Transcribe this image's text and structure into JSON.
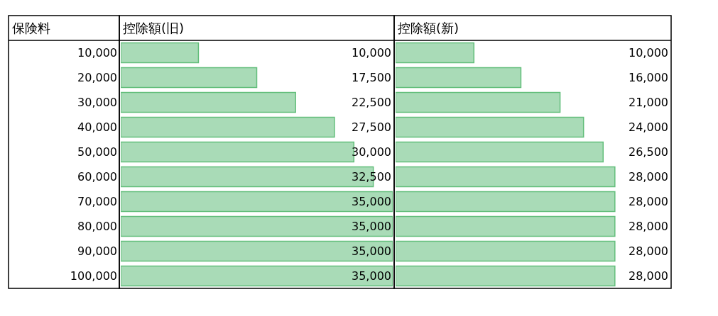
{
  "chart_data": [
    {
      "type": "bar",
      "orientation": "horizontal",
      "title": "控除額(旧)",
      "ylabel": "保険料",
      "categories": [
        "10,000",
        "20,000",
        "30,000",
        "40,000",
        "50,000",
        "60,000",
        "70,000",
        "80,000",
        "90,000",
        "100,000"
      ],
      "values": [
        10000,
        17500,
        22500,
        27500,
        30000,
        32500,
        35000,
        35000,
        35000,
        35000
      ],
      "value_labels": [
        "10,000",
        "17,500",
        "22,500",
        "27,500",
        "30,000",
        "32,500",
        "35,000",
        "35,000",
        "35,000",
        "35,000"
      ],
      "color": "#63be7b",
      "tick_labels": "y"
    },
    {
      "type": "bar",
      "orientation": "horizontal",
      "title": "控除額(新)",
      "categories": [
        "10,000",
        "20,000",
        "30,000",
        "40,000",
        "50,000",
        "60,000",
        "70,000",
        "80,000",
        "90,000",
        "100,000"
      ],
      "values": [
        10000,
        16000,
        21000,
        24000,
        26500,
        28000,
        28000,
        28000,
        28000,
        28000
      ],
      "value_labels": [
        "10,000",
        "16,000",
        "21,000",
        "24,000",
        "26,500",
        "28,000",
        "28,000",
        "28,000",
        "28,000",
        "28,000"
      ],
      "color": "#63be7b",
      "tick_labels": false
    }
  ]
}
